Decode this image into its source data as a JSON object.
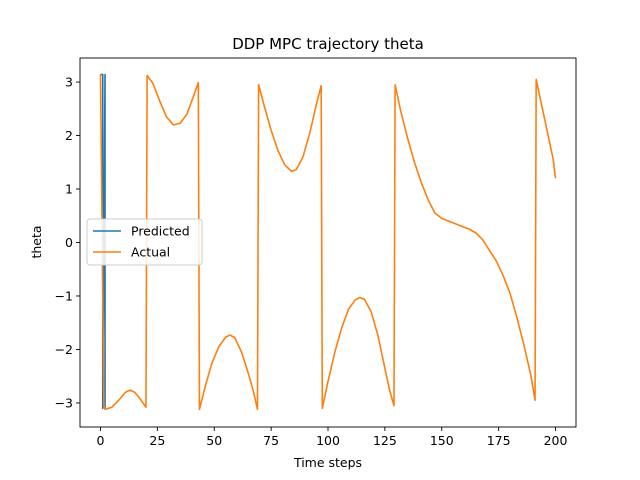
{
  "chart_data": {
    "type": "line",
    "title": "DDP MPC trajectory theta",
    "xlabel": "Time steps",
    "ylabel": "theta",
    "xlim": [
      -9,
      209
    ],
    "ylim": [
      -3.45,
      3.45
    ],
    "xticks": [
      0,
      25,
      50,
      75,
      100,
      125,
      150,
      175,
      200
    ],
    "yticks": [
      -3,
      -2,
      -1,
      0,
      1,
      2,
      3
    ],
    "grid": false,
    "legend_position": "center-left",
    "series": [
      {
        "name": "Predicted",
        "color": "#1f77b4",
        "points": [
          [
            0,
            3.14
          ],
          [
            1,
            3.14
          ],
          [
            1,
            -3.1
          ],
          [
            2,
            3.14
          ],
          [
            2,
            -3.1
          ]
        ]
      },
      {
        "name": "Actual",
        "color": "#ff7f0e",
        "points": [
          [
            0,
            3.14
          ],
          [
            0.5,
            1.2
          ],
          [
            1,
            -1.0
          ],
          [
            1.5,
            -3.05
          ],
          [
            2,
            -3.12
          ],
          [
            5,
            -3.08
          ],
          [
            8,
            -2.95
          ],
          [
            11,
            -2.8
          ],
          [
            13,
            -2.76
          ],
          [
            15,
            -2.8
          ],
          [
            17,
            -2.9
          ],
          [
            20,
            -3.08
          ],
          [
            20.5,
            3.12
          ],
          [
            23,
            2.98
          ],
          [
            26,
            2.65
          ],
          [
            29,
            2.35
          ],
          [
            32,
            2.2
          ],
          [
            35,
            2.23
          ],
          [
            38,
            2.4
          ],
          [
            41,
            2.75
          ],
          [
            43,
            2.99
          ],
          [
            43.5,
            -3.12
          ],
          [
            46,
            -2.7
          ],
          [
            49,
            -2.25
          ],
          [
            52,
            -1.95
          ],
          [
            55,
            -1.77
          ],
          [
            57,
            -1.73
          ],
          [
            59,
            -1.78
          ],
          [
            62,
            -2.05
          ],
          [
            65,
            -2.45
          ],
          [
            67,
            -2.75
          ],
          [
            69,
            -3.12
          ],
          [
            69.5,
            2.95
          ],
          [
            72,
            2.55
          ],
          [
            75,
            2.1
          ],
          [
            78,
            1.72
          ],
          [
            81,
            1.45
          ],
          [
            84,
            1.33
          ],
          [
            86,
            1.36
          ],
          [
            89,
            1.6
          ],
          [
            92,
            2.05
          ],
          [
            95,
            2.6
          ],
          [
            97,
            2.93
          ],
          [
            97.5,
            -3.1
          ],
          [
            100,
            -2.6
          ],
          [
            103,
            -2.05
          ],
          [
            106,
            -1.6
          ],
          [
            109,
            -1.25
          ],
          [
            112,
            -1.07
          ],
          [
            114,
            -1.03
          ],
          [
            116,
            -1.06
          ],
          [
            119,
            -1.3
          ],
          [
            122,
            -1.75
          ],
          [
            125,
            -2.35
          ],
          [
            127,
            -2.75
          ],
          [
            129,
            -3.05
          ],
          [
            129.5,
            2.95
          ],
          [
            132,
            2.45
          ],
          [
            135,
            1.95
          ],
          [
            138,
            1.5
          ],
          [
            141,
            1.12
          ],
          [
            144,
            0.8
          ],
          [
            147,
            0.55
          ],
          [
            150,
            0.45
          ],
          [
            153,
            0.4
          ],
          [
            156,
            0.35
          ],
          [
            159,
            0.3
          ],
          [
            162,
            0.25
          ],
          [
            165,
            0.18
          ],
          [
            168,
            0.05
          ],
          [
            171,
            -0.15
          ],
          [
            174,
            -0.35
          ],
          [
            177,
            -0.62
          ],
          [
            180,
            -0.95
          ],
          [
            183,
            -1.4
          ],
          [
            186,
            -1.9
          ],
          [
            189,
            -2.45
          ],
          [
            191,
            -2.95
          ],
          [
            191.5,
            3.05
          ],
          [
            193,
            2.75
          ],
          [
            195,
            2.35
          ],
          [
            197,
            1.95
          ],
          [
            199,
            1.55
          ],
          [
            200,
            1.2
          ]
        ]
      }
    ]
  }
}
